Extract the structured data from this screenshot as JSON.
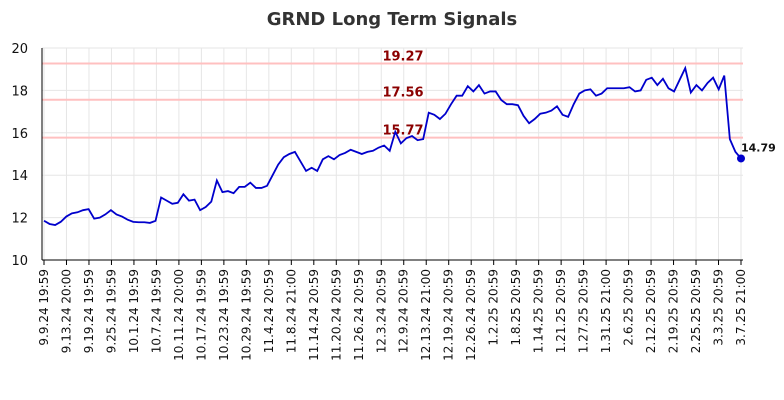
{
  "chart_data": {
    "type": "line",
    "title": "GRND Long Term Signals",
    "xlabel": "",
    "ylabel": "",
    "ylim": [
      10,
      20
    ],
    "yticks": [
      10,
      12,
      14,
      16,
      18,
      20
    ],
    "grid": true,
    "colors": {
      "line": "#0000cc",
      "level_line": "#ffc0c0",
      "level_label": "#8b0000",
      "grid": "#e6e6e6",
      "axis": "#000000"
    },
    "x_tick_labels": [
      "9.9.24 19:59",
      "9.13.24 20:00",
      "9.19.24 19:59",
      "9.25.24 19:59",
      "10.1.24 19:59",
      "10.7.24 19:59",
      "10.11.24 20:00",
      "10.17.24 19:59",
      "10.23.24 19:59",
      "10.29.24 19:59",
      "11.4.24 20:59",
      "11.8.24 21:00",
      "11.14.24 20:59",
      "11.20.24 20:59",
      "11.26.24 20:59",
      "12.3.24 20:59",
      "12.9.24 20:59",
      "12.13.24 21:00",
      "12.19.24 20:59",
      "12.26.24 20:59",
      "1.2.25 20:59",
      "1.8.25 20:59",
      "1.14.25 20:59",
      "1.21.25 20:59",
      "1.27.25 20:59",
      "1.31.25 21:00",
      "2.6.25 20:59",
      "2.12.25 20:59",
      "2.19.25 20:59",
      "2.25.25 20:59",
      "3.3.25 20:59",
      "3.7.25 21:00"
    ],
    "levels": [
      {
        "value": 19.27,
        "label": "19.27"
      },
      {
        "value": 17.56,
        "label": "17.56"
      },
      {
        "value": 15.77,
        "label": "15.77"
      }
    ],
    "series": [
      {
        "values": [
          11.85,
          11.7,
          11.65,
          11.8,
          12.05,
          12.2,
          12.25,
          12.35,
          12.4,
          11.95,
          12.0,
          12.15,
          12.35,
          12.15,
          12.05,
          11.9,
          11.8,
          11.78,
          11.78,
          11.75,
          11.85,
          12.95,
          12.8,
          12.65,
          12.7,
          13.1,
          12.8,
          12.85,
          12.35,
          12.5,
          12.75,
          13.75,
          13.2,
          13.25,
          13.15,
          13.45,
          13.45,
          13.65,
          13.4,
          13.4,
          13.5,
          14.0,
          14.5,
          14.85,
          15.0,
          15.1,
          14.65,
          14.2,
          14.35,
          14.2,
          14.75,
          14.9,
          14.75,
          14.95,
          15.05,
          15.2,
          15.1,
          15.0,
          15.1,
          15.15,
          15.3,
          15.4,
          15.15,
          16.05,
          15.5,
          15.75,
          15.85,
          15.65,
          15.7,
          16.95,
          16.85,
          16.65,
          16.9,
          17.35,
          17.75,
          17.75,
          18.2,
          17.95,
          18.25,
          17.85,
          17.95,
          17.95,
          17.55,
          17.35,
          17.35,
          17.3,
          16.8,
          16.45,
          16.65,
          16.9,
          16.95,
          17.05,
          17.25,
          16.85,
          16.75,
          17.35,
          17.85,
          18.0,
          18.05,
          17.75,
          17.85,
          18.1,
          18.1,
          18.1,
          18.1,
          18.15,
          17.95,
          18.0,
          18.5,
          18.6,
          18.25,
          18.55,
          18.1,
          17.95,
          18.5,
          19.05,
          17.9,
          18.25,
          18.0,
          18.35,
          18.6,
          18.05,
          18.7,
          15.7,
          15.1,
          14.79
        ],
        "last_value": 14.79,
        "last_label": "14.79"
      }
    ]
  }
}
